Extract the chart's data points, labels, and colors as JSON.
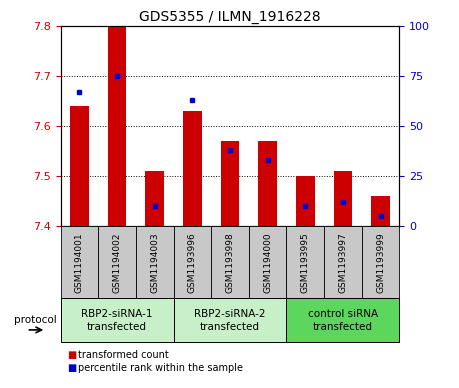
{
  "title": "GDS5355 / ILMN_1916228",
  "samples": [
    "GSM1194001",
    "GSM1194002",
    "GSM1194003",
    "GSM1193996",
    "GSM1193998",
    "GSM1194000",
    "GSM1193995",
    "GSM1193997",
    "GSM1193999"
  ],
  "red_values": [
    7.64,
    7.8,
    7.51,
    7.63,
    7.57,
    7.57,
    7.5,
    7.51,
    7.46
  ],
  "blue_values": [
    67,
    75,
    10,
    63,
    38,
    33,
    10,
    12,
    5
  ],
  "ylim_left": [
    7.4,
    7.8
  ],
  "ylim_right": [
    0,
    100
  ],
  "yticks_left": [
    7.4,
    7.5,
    7.6,
    7.7,
    7.8
  ],
  "yticks_right": [
    0,
    25,
    50,
    75,
    100
  ],
  "groups": [
    {
      "label": "RBP2-siRNA-1\ntransfected",
      "start": 0,
      "end": 3,
      "color": "#c8f0c8"
    },
    {
      "label": "RBP2-siRNA-2\ntransfected",
      "start": 3,
      "end": 6,
      "color": "#c8f0c8"
    },
    {
      "label": "control siRNA\ntransfected",
      "start": 6,
      "end": 9,
      "color": "#5cd65c"
    }
  ],
  "bar_width": 0.5,
  "red_color": "#cc0000",
  "blue_color": "#0000cc",
  "sample_bg": "#c8c8c8",
  "plot_bg": "#ffffff",
  "legend_red": "transformed count",
  "legend_blue": "percentile rank within the sample",
  "protocol_label": "protocol",
  "title_fontsize": 10,
  "tick_fontsize": 8,
  "sample_fontsize": 6.5,
  "group_fontsize": 7.5,
  "legend_fontsize": 7
}
